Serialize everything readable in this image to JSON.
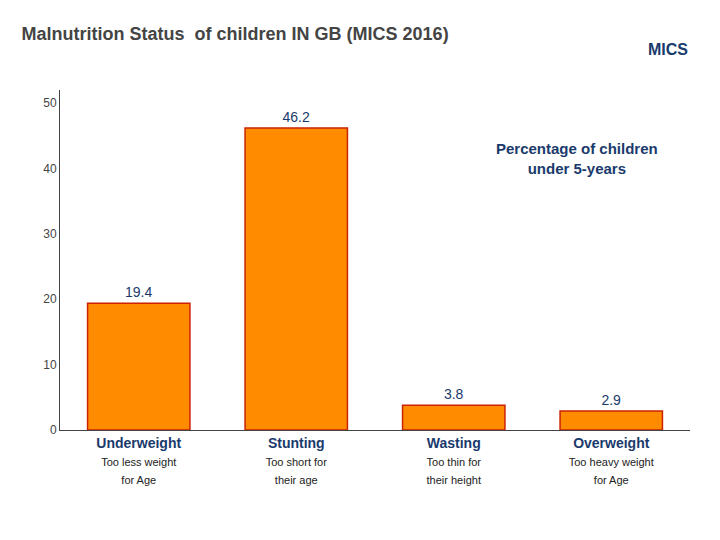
{
  "chart_data": {
    "type": "bar",
    "title": "Malnutrition Status  of children IN GB (MICS 2016)",
    "categories": [
      "Underweight",
      "Stunting",
      "Wasting",
      "Overweight"
    ],
    "values": [
      19.4,
      46.2,
      3.8,
      2.9
    ],
    "color": "#FF8C00",
    "data_labels": true,
    "ylim": [
      0,
      52
    ],
    "yticks": [
      0,
      10,
      20,
      30,
      40,
      50
    ],
    "grid": false,
    "annotations": [
      {
        "text": "Too less weight\nfor Age",
        "category": "Underweight"
      },
      {
        "text": "Too short for\ntheir age",
        "category": "Stunting"
      },
      {
        "text": "Too thin for\ntheir height",
        "category": "Wasting"
      },
      {
        "text": "Too heavy weight\nfor Age",
        "category": "Overweight"
      },
      {
        "text": "Percentage of children\nunder 5-years"
      },
      {
        "text": "MICS"
      }
    ]
  }
}
